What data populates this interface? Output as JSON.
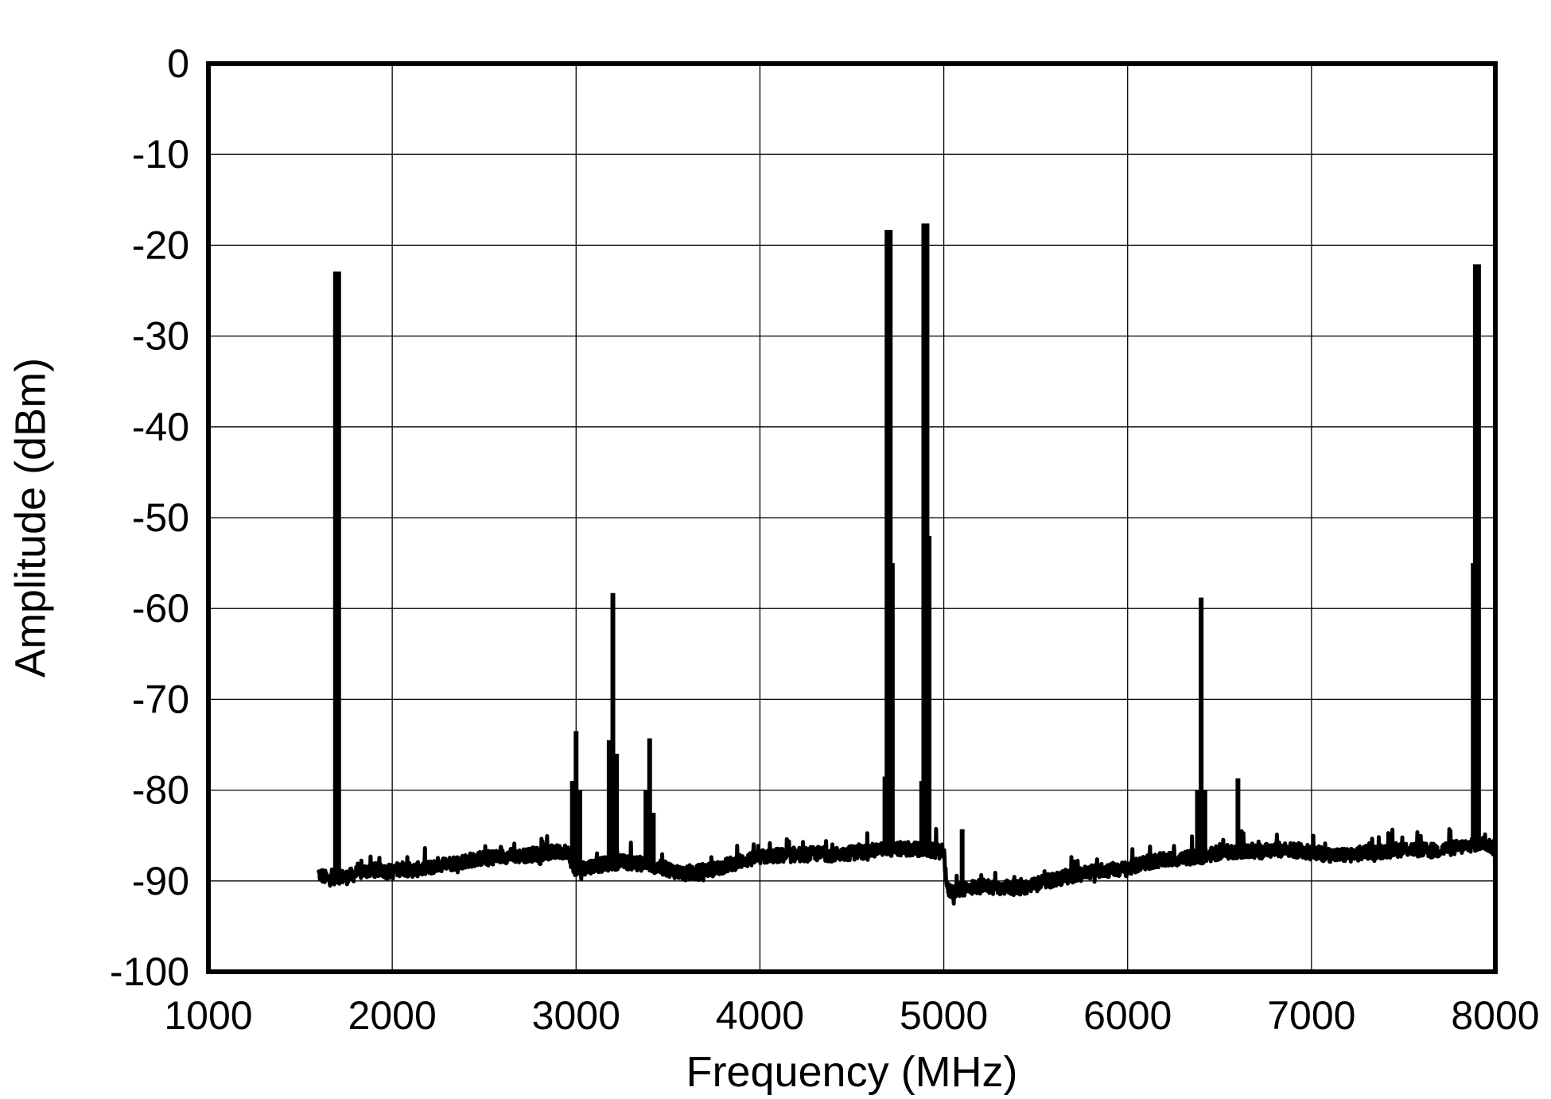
{
  "chart_data": {
    "type": "line",
    "title": "",
    "xlabel": "Frequency (MHz)",
    "ylabel": "Amplitude (dBm)",
    "xlim": [
      1000,
      8000
    ],
    "ylim": [
      -100,
      0
    ],
    "x_ticks": [
      "1000",
      "2000",
      "3000",
      "4000",
      "5000",
      "6000",
      "7000",
      "8000"
    ],
    "y_ticks": [
      "0",
      "-10",
      "-20",
      "-30",
      "-40",
      "-50",
      "-60",
      "-70",
      "-80",
      "-90",
      "-100"
    ],
    "grid": true,
    "legend": "none",
    "colors": {
      "line": "#000000",
      "background": "#ffffff",
      "grid": "#000000"
    },
    "series": [
      {
        "noise_floor": [
          [
            1600,
            -89.2
          ],
          [
            1650,
            -89.8
          ],
          [
            1700,
            -89.5
          ],
          [
            1750,
            -89.6
          ],
          [
            1800,
            -89.2
          ],
          [
            1850,
            -88.9
          ],
          [
            1900,
            -88.8
          ],
          [
            1950,
            -88.9
          ],
          [
            2000,
            -89.0
          ],
          [
            2050,
            -88.6
          ],
          [
            2100,
            -88.8
          ],
          [
            2150,
            -88.7
          ],
          [
            2200,
            -88.6
          ],
          [
            2250,
            -88.2
          ],
          [
            2300,
            -88.1
          ],
          [
            2350,
            -88.0
          ],
          [
            2400,
            -87.8
          ],
          [
            2450,
            -87.6
          ],
          [
            2500,
            -87.5
          ],
          [
            2550,
            -87.4
          ],
          [
            2600,
            -87.3
          ],
          [
            2650,
            -87.2
          ],
          [
            2700,
            -87.3
          ],
          [
            2750,
            -87.1
          ],
          [
            2800,
            -87.0
          ],
          [
            2850,
            -86.9
          ],
          [
            2900,
            -86.8
          ],
          [
            2950,
            -86.7
          ],
          [
            3000,
            -89.0
          ],
          [
            3050,
            -88.5
          ],
          [
            3100,
            -88.3
          ],
          [
            3150,
            -88.2
          ],
          [
            3200,
            -88.0
          ],
          [
            3250,
            -87.9
          ],
          [
            3300,
            -88.0
          ],
          [
            3350,
            -88.1
          ],
          [
            3400,
            -88.2
          ],
          [
            3450,
            -88.5
          ],
          [
            3500,
            -88.7
          ],
          [
            3550,
            -89.0
          ],
          [
            3600,
            -89.2
          ],
          [
            3650,
            -89.1
          ],
          [
            3700,
            -88.8
          ],
          [
            3750,
            -88.7
          ],
          [
            3800,
            -88.4
          ],
          [
            3850,
            -88.1
          ],
          [
            3900,
            -87.8
          ],
          [
            3950,
            -87.6
          ],
          [
            4000,
            -87.4
          ],
          [
            4050,
            -87.3
          ],
          [
            4100,
            -87.2
          ],
          [
            4150,
            -87.2
          ],
          [
            4200,
            -87.1
          ],
          [
            4250,
            -87.1
          ],
          [
            4300,
            -87.0
          ],
          [
            4350,
            -87.0
          ],
          [
            4400,
            -87.1
          ],
          [
            4450,
            -87.0
          ],
          [
            4500,
            -86.9
          ],
          [
            4550,
            -86.8
          ],
          [
            4600,
            -86.7
          ],
          [
            4650,
            -86.6
          ],
          [
            4700,
            -86.5
          ],
          [
            4750,
            -86.5
          ],
          [
            4800,
            -86.5
          ],
          [
            4850,
            -86.5
          ],
          [
            4900,
            -86.6
          ],
          [
            4950,
            -86.7
          ],
          [
            5000,
            -86.8
          ],
          [
            5020,
            -91.0
          ],
          [
            5050,
            -91.2
          ],
          [
            5100,
            -90.9
          ],
          [
            5150,
            -90.7
          ],
          [
            5200,
            -90.6
          ],
          [
            5250,
            -90.6
          ],
          [
            5300,
            -90.7
          ],
          [
            5350,
            -90.7
          ],
          [
            5400,
            -90.8
          ],
          [
            5450,
            -90.6
          ],
          [
            5500,
            -90.4
          ],
          [
            5550,
            -90.1
          ],
          [
            5600,
            -89.9
          ],
          [
            5650,
            -89.6
          ],
          [
            5700,
            -89.4
          ],
          [
            5750,
            -89.2
          ],
          [
            5800,
            -89.0
          ],
          [
            5850,
            -88.8
          ],
          [
            5900,
            -88.8
          ],
          [
            5950,
            -88.7
          ],
          [
            6000,
            -88.7
          ],
          [
            6050,
            -88.3
          ],
          [
            6100,
            -88.0
          ],
          [
            6150,
            -87.8
          ],
          [
            6200,
            -87.7
          ],
          [
            6250,
            -87.6
          ],
          [
            6300,
            -87.5
          ],
          [
            6350,
            -87.4
          ],
          [
            6400,
            -87.3
          ],
          [
            6450,
            -87.1
          ],
          [
            6500,
            -86.9
          ],
          [
            6550,
            -86.8
          ],
          [
            6600,
            -86.7
          ],
          [
            6650,
            -86.7
          ],
          [
            6700,
            -86.8
          ],
          [
            6750,
            -86.7
          ],
          [
            6800,
            -86.6
          ],
          [
            6850,
            -86.5
          ],
          [
            6900,
            -86.6
          ],
          [
            6950,
            -86.7
          ],
          [
            7000,
            -86.9
          ],
          [
            7050,
            -87.0
          ],
          [
            7100,
            -87.1
          ],
          [
            7150,
            -87.2
          ],
          [
            7200,
            -87.1
          ],
          [
            7250,
            -87.0
          ],
          [
            7300,
            -86.9
          ],
          [
            7350,
            -86.8
          ],
          [
            7400,
            -86.7
          ],
          [
            7450,
            -86.6
          ],
          [
            7500,
            -86.5
          ],
          [
            7550,
            -86.5
          ],
          [
            7600,
            -86.6
          ],
          [
            7650,
            -86.7
          ],
          [
            7700,
            -86.6
          ],
          [
            7750,
            -86.4
          ],
          [
            7800,
            -86.3
          ],
          [
            7850,
            -86.1
          ],
          [
            7900,
            -85.9
          ],
          [
            7950,
            -85.9
          ],
          [
            8000,
            -86.5
          ]
        ],
        "spurs": [
          {
            "x": 1700,
            "y": -22.9
          },
          {
            "x": 2980,
            "y": -79.0
          },
          {
            "x": 3000,
            "y": -73.5
          },
          {
            "x": 3020,
            "y": -80.0
          },
          {
            "x": 3180,
            "y": -74.5
          },
          {
            "x": 3200,
            "y": -58.3
          },
          {
            "x": 3220,
            "y": -76.0
          },
          {
            "x": 3380,
            "y": -80.0
          },
          {
            "x": 3400,
            "y": -74.3
          },
          {
            "x": 3420,
            "y": -82.5
          },
          {
            "x": 4680,
            "y": -78.5
          },
          {
            "x": 4700,
            "y": -18.3
          },
          {
            "x": 4720,
            "y": -55.0
          },
          {
            "x": 4880,
            "y": -79.0
          },
          {
            "x": 4900,
            "y": -17.6
          },
          {
            "x": 4920,
            "y": -52.0
          },
          {
            "x": 5100,
            "y": -84.3
          },
          {
            "x": 6380,
            "y": -80.0
          },
          {
            "x": 6400,
            "y": -58.8
          },
          {
            "x": 6420,
            "y": -80.0
          },
          {
            "x": 6600,
            "y": -78.7
          },
          {
            "x": 7880,
            "y": -55.0
          },
          {
            "x": 7900,
            "y": -22.1
          }
        ]
      }
    ]
  }
}
